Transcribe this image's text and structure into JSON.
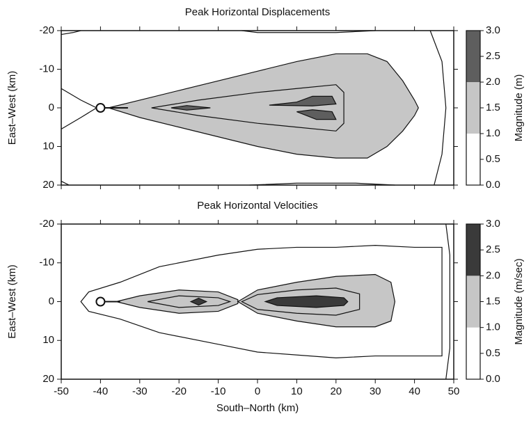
{
  "chart_data": [
    {
      "type": "contour",
      "title": "Peak Horizontal Displacements",
      "ylabel": "East–West (km)",
      "colorbar_label": "Magnitude (m)",
      "ylim": [
        -20,
        20
      ],
      "yinvert": true,
      "yticks": [
        -20,
        -10,
        0,
        10,
        20
      ],
      "levels": [
        0,
        1,
        2,
        3
      ],
      "colors": [
        "#ffffff",
        "#c6c6c6",
        "#5e5e5e"
      ],
      "cticks": [
        {
          "value": 0,
          "label": "0.0"
        },
        {
          "value": 0.5,
          "label": "0.5"
        },
        {
          "value": 1,
          "label": "1.0"
        },
        {
          "value": 1.5,
          "label": "1.5"
        },
        {
          "value": 2,
          "label": "2.0"
        },
        {
          "value": 2.5,
          "label": "2.5"
        },
        {
          "value": 3,
          "label": "3.0"
        }
      ],
      "source": [
        -40,
        0
      ],
      "fault": [
        [
          -40,
          0
        ],
        [
          -33,
          0
        ]
      ],
      "regions": [
        {
          "level": 1,
          "points": [
            [
              -38,
              0
            ],
            [
              -30,
              -2
            ],
            [
              -20,
              -4.5
            ],
            [
              -10,
              -7
            ],
            [
              0,
              -9.5
            ],
            [
              10,
              -12
            ],
            [
              20,
              -14
            ],
            [
              28,
              -14
            ],
            [
              33,
              -12
            ],
            [
              37,
              -7
            ],
            [
              40,
              -2
            ],
            [
              41,
              0
            ],
            [
              40,
              2
            ],
            [
              37,
              6
            ],
            [
              33,
              10
            ],
            [
              28,
              13
            ],
            [
              20,
              13
            ],
            [
              10,
              12
            ],
            [
              0,
              10
            ],
            [
              -10,
              7.5
            ],
            [
              -20,
              5
            ],
            [
              -30,
              2.5
            ]
          ]
        },
        {
          "level": 1.5,
          "points": [
            [
              -27,
              0
            ],
            [
              -15,
              -2
            ],
            [
              0,
              -4
            ],
            [
              10,
              -5
            ],
            [
              20,
              -6
            ],
            [
              22,
              -4
            ],
            [
              22,
              4
            ],
            [
              20,
              6
            ],
            [
              10,
              5
            ],
            [
              0,
              4
            ],
            [
              -15,
              2
            ]
          ]
        },
        {
          "level": 2,
          "points": [
            [
              3,
              -0.7
            ],
            [
              10,
              -1.5
            ],
            [
              14,
              -3
            ],
            [
              19,
              -3
            ],
            [
              20,
              -1
            ],
            [
              14,
              -0.5
            ]
          ]
        },
        {
          "level": 2,
          "points": [
            [
              10,
              1
            ],
            [
              14,
              0.5
            ],
            [
              19,
              1
            ],
            [
              20,
              3
            ],
            [
              15,
              3
            ]
          ]
        },
        {
          "level": 2,
          "points": [
            [
              -22,
              0
            ],
            [
              -18,
              -0.6
            ],
            [
              -12,
              0
            ],
            [
              -18,
              0.6
            ]
          ]
        }
      ],
      "lines": [
        [
          [
            -50,
            -5
          ],
          [
            -45,
            -2
          ],
          [
            -41,
            0
          ],
          [
            -45,
            2.5
          ],
          [
            -50,
            5.5
          ]
        ],
        [
          [
            44,
            -20
          ],
          [
            47,
            -12
          ],
          [
            48,
            0
          ],
          [
            47,
            12
          ],
          [
            45,
            20
          ]
        ],
        [
          [
            -50,
            -19
          ],
          [
            -47,
            -19.5
          ],
          [
            -45,
            -20
          ]
        ],
        [
          [
            -4,
            -20
          ],
          [
            0,
            -19.5
          ],
          [
            20,
            -19.5
          ],
          [
            30,
            -20
          ]
        ],
        [
          [
            -50,
            19
          ],
          [
            -48,
            20
          ]
        ],
        [
          [
            -2,
            20
          ],
          [
            10,
            19.5
          ],
          [
            25,
            19.5
          ],
          [
            35,
            20
          ]
        ]
      ]
    },
    {
      "type": "contour",
      "title": "Peak Horizontal Velocities",
      "ylabel": "East–West (km)",
      "xlabel": "South–North (km)",
      "colorbar_label": "Magnitude (m/sec)",
      "xlim": [
        -50,
        50
      ],
      "xticks": [
        -50,
        -40,
        -30,
        -20,
        -10,
        0,
        10,
        20,
        30,
        40,
        50
      ],
      "ylim": [
        -20,
        20
      ],
      "yinvert": true,
      "yticks": [
        -20,
        -10,
        0,
        10,
        20
      ],
      "levels": [
        0,
        1,
        2,
        3
      ],
      "colors": [
        "#ffffff",
        "#c6c6c6",
        "#3a3a3a"
      ],
      "cticks": [
        {
          "value": 0,
          "label": "0.0"
        },
        {
          "value": 0.5,
          "label": "0.5"
        },
        {
          "value": 1,
          "label": "1.0"
        },
        {
          "value": 1.5,
          "label": "1.5"
        },
        {
          "value": 2,
          "label": "2.0"
        },
        {
          "value": 2.5,
          "label": "2.5"
        },
        {
          "value": 3,
          "label": "3.0"
        }
      ],
      "source": [
        -40,
        0
      ],
      "fault": [
        [
          -40,
          0
        ],
        [
          -35,
          0
        ]
      ],
      "regions": [
        {
          "level": 0.5,
          "points": [
            [
              -45,
              0
            ],
            [
              -43,
              -2.5
            ],
            [
              -35,
              -5
            ],
            [
              -25,
              -9
            ],
            [
              -10,
              -12
            ],
            [
              0,
              -13.5
            ],
            [
              10,
              -14
            ],
            [
              20,
              -14
            ],
            [
              30,
              -14.5
            ],
            [
              40,
              -14
            ],
            [
              47,
              -14
            ],
            [
              47,
              14
            ],
            [
              30,
              14
            ],
            [
              20,
              14.5
            ],
            [
              0,
              13
            ],
            [
              -10,
              11
            ],
            [
              -25,
              8
            ],
            [
              -35,
              4.5
            ],
            [
              -43,
              2.5
            ]
          ]
        },
        {
          "level": 1,
          "points": [
            [
              -36,
              0
            ],
            [
              -30,
              -1.5
            ],
            [
              -20,
              -3
            ],
            [
              -10,
              -2.5
            ],
            [
              -5,
              -0.5
            ],
            [
              -5,
              0.5
            ],
            [
              -10,
              2.5
            ],
            [
              -20,
              3
            ],
            [
              -30,
              1.5
            ]
          ]
        },
        {
          "level": 1,
          "points": [
            [
              -5,
              0
            ],
            [
              0,
              -3
            ],
            [
              10,
              -5
            ],
            [
              20,
              -6.5
            ],
            [
              30,
              -7
            ],
            [
              34,
              -5
            ],
            [
              35,
              0
            ],
            [
              34,
              5
            ],
            [
              30,
              6.5
            ],
            [
              20,
              6.5
            ],
            [
              10,
              5
            ],
            [
              0,
              3
            ]
          ]
        },
        {
          "level": 1.5,
          "points": [
            [
              -28,
              0
            ],
            [
              -20,
              -1.5
            ],
            [
              -10,
              -1
            ],
            [
              -7,
              0
            ],
            [
              -10,
              1
            ],
            [
              -20,
              1.5
            ]
          ]
        },
        {
          "level": 1.5,
          "points": [
            [
              -4,
              0
            ],
            [
              0,
              -1.8
            ],
            [
              10,
              -3
            ],
            [
              20,
              -3.5
            ],
            [
              26,
              -2
            ],
            [
              26,
              2
            ],
            [
              20,
              3.5
            ],
            [
              10,
              3
            ],
            [
              0,
              2
            ]
          ]
        },
        {
          "level": 2,
          "points": [
            [
              -17,
              0
            ],
            [
              -15,
              -0.9
            ],
            [
              -13,
              0
            ],
            [
              -15,
              0.9
            ]
          ]
        },
        {
          "level": 2,
          "points": [
            [
              2,
              0
            ],
            [
              5,
              -1
            ],
            [
              15,
              -1.5
            ],
            [
              22,
              -1
            ],
            [
              23,
              0
            ],
            [
              22,
              1
            ],
            [
              15,
              1.5
            ],
            [
              5,
              1
            ]
          ]
        }
      ],
      "lines": [
        [
          [
            48,
            -20
          ],
          [
            49,
            -12
          ],
          [
            49,
            12
          ],
          [
            48,
            20
          ]
        ]
      ]
    }
  ]
}
